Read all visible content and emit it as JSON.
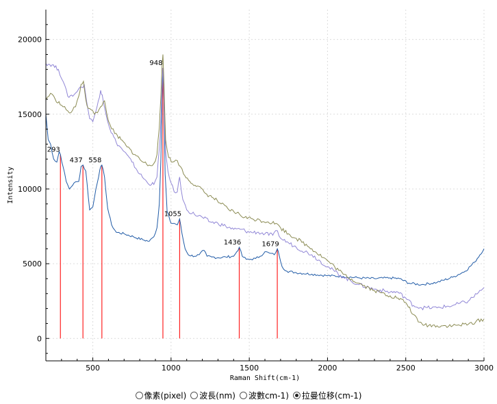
{
  "chart_data": {
    "type": "line",
    "xlabel": "Raman Shift(cm-1)",
    "ylabel": "Intensity",
    "xlim": [
      200,
      3000
    ],
    "ylim": [
      -1500,
      22000
    ],
    "x_ticks": [
      500,
      1000,
      1500,
      2000,
      2500,
      3000
    ],
    "y_ticks": [
      0,
      5000,
      10000,
      15000,
      20000
    ],
    "grid": true,
    "series": [
      {
        "color": "#1f5aa6",
        "points": [
          [
            200,
            15000
          ],
          [
            215,
            13300
          ],
          [
            230,
            13000
          ],
          [
            250,
            12000
          ],
          [
            270,
            11800
          ],
          [
            285,
            12500
          ],
          [
            293,
            12300
          ],
          [
            310,
            11500
          ],
          [
            330,
            10500
          ],
          [
            350,
            10000
          ],
          [
            380,
            10400
          ],
          [
            410,
            10500
          ],
          [
            425,
            11500
          ],
          [
            437,
            11600
          ],
          [
            455,
            11200
          ],
          [
            480,
            8600
          ],
          [
            500,
            8800
          ],
          [
            520,
            10000
          ],
          [
            545,
            11300
          ],
          [
            558,
            11600
          ],
          [
            575,
            10800
          ],
          [
            595,
            8700
          ],
          [
            620,
            7600
          ],
          [
            650,
            7100
          ],
          [
            700,
            7000
          ],
          [
            760,
            6800
          ],
          [
            820,
            6600
          ],
          [
            860,
            6500
          ],
          [
            890,
            6800
          ],
          [
            910,
            7400
          ],
          [
            925,
            9000
          ],
          [
            935,
            12000
          ],
          [
            942,
            16000
          ],
          [
            948,
            18100
          ],
          [
            954,
            16500
          ],
          [
            962,
            11000
          ],
          [
            975,
            8500
          ],
          [
            1000,
            7700
          ],
          [
            1020,
            7700
          ],
          [
            1040,
            7600
          ],
          [
            1055,
            8000
          ],
          [
            1070,
            7000
          ],
          [
            1090,
            6000
          ],
          [
            1110,
            5600
          ],
          [
            1150,
            5500
          ],
          [
            1180,
            5600
          ],
          [
            1210,
            5900
          ],
          [
            1230,
            5500
          ],
          [
            1260,
            5450
          ],
          [
            1300,
            5400
          ],
          [
            1350,
            5450
          ],
          [
            1400,
            5500
          ],
          [
            1420,
            5800
          ],
          [
            1436,
            6100
          ],
          [
            1455,
            5500
          ],
          [
            1480,
            5300
          ],
          [
            1510,
            5300
          ],
          [
            1540,
            5350
          ],
          [
            1570,
            5500
          ],
          [
            1600,
            5800
          ],
          [
            1630,
            5700
          ],
          [
            1660,
            5600
          ],
          [
            1679,
            6000
          ],
          [
            1690,
            5600
          ],
          [
            1710,
            4800
          ],
          [
            1740,
            4500
          ],
          [
            1800,
            4400
          ],
          [
            1900,
            4300
          ],
          [
            2000,
            4200
          ],
          [
            2100,
            4150
          ],
          [
            2200,
            4050
          ],
          [
            2300,
            4000
          ],
          [
            2400,
            4050
          ],
          [
            2460,
            4000
          ],
          [
            2520,
            3700
          ],
          [
            2600,
            3600
          ],
          [
            2700,
            3750
          ],
          [
            2800,
            4100
          ],
          [
            2880,
            4500
          ],
          [
            2940,
            5100
          ],
          [
            3000,
            6000
          ]
        ]
      },
      {
        "color": "#9086d6",
        "points": [
          [
            200,
            18400
          ],
          [
            240,
            18300
          ],
          [
            280,
            18000
          ],
          [
            310,
            17200
          ],
          [
            340,
            16200
          ],
          [
            380,
            16300
          ],
          [
            410,
            16700
          ],
          [
            430,
            16800
          ],
          [
            445,
            17000
          ],
          [
            460,
            15900
          ],
          [
            480,
            14700
          ],
          [
            500,
            14500
          ],
          [
            520,
            15200
          ],
          [
            535,
            15900
          ],
          [
            550,
            16600
          ],
          [
            560,
            16300
          ],
          [
            580,
            15200
          ],
          [
            610,
            14000
          ],
          [
            650,
            13100
          ],
          [
            700,
            12500
          ],
          [
            750,
            11800
          ],
          [
            800,
            11000
          ],
          [
            850,
            10400
          ],
          [
            890,
            10300
          ],
          [
            910,
            10800
          ],
          [
            925,
            12700
          ],
          [
            935,
            14500
          ],
          [
            943,
            17000
          ],
          [
            948,
            18100
          ],
          [
            955,
            15700
          ],
          [
            965,
            12500
          ],
          [
            980,
            11200
          ],
          [
            1000,
            10400
          ],
          [
            1020,
            9800
          ],
          [
            1040,
            9800
          ],
          [
            1055,
            10800
          ],
          [
            1075,
            9300
          ],
          [
            1100,
            8600
          ],
          [
            1150,
            8300
          ],
          [
            1200,
            8100
          ],
          [
            1250,
            7800
          ],
          [
            1300,
            7700
          ],
          [
            1350,
            7500
          ],
          [
            1400,
            7300
          ],
          [
            1450,
            7300
          ],
          [
            1500,
            7100
          ],
          [
            1550,
            7100
          ],
          [
            1600,
            7000
          ],
          [
            1650,
            6900
          ],
          [
            1680,
            7200
          ],
          [
            1700,
            6700
          ],
          [
            1750,
            6400
          ],
          [
            1800,
            6100
          ],
          [
            1900,
            5600
          ],
          [
            2000,
            4800
          ],
          [
            2100,
            4100
          ],
          [
            2200,
            3600
          ],
          [
            2300,
            3300
          ],
          [
            2400,
            3100
          ],
          [
            2450,
            3100
          ],
          [
            2500,
            2700
          ],
          [
            2550,
            2200
          ],
          [
            2600,
            2050
          ],
          [
            2700,
            2050
          ],
          [
            2800,
            2200
          ],
          [
            2900,
            2500
          ],
          [
            3000,
            3400
          ]
        ]
      },
      {
        "color": "#8a8a52",
        "points": [
          [
            200,
            16000
          ],
          [
            230,
            16400
          ],
          [
            260,
            16000
          ],
          [
            300,
            15600
          ],
          [
            330,
            15300
          ],
          [
            360,
            15100
          ],
          [
            390,
            15500
          ],
          [
            410,
            16200
          ],
          [
            425,
            17000
          ],
          [
            440,
            17200
          ],
          [
            455,
            16000
          ],
          [
            470,
            15400
          ],
          [
            490,
            15300
          ],
          [
            510,
            15000
          ],
          [
            530,
            15100
          ],
          [
            550,
            15500
          ],
          [
            575,
            15900
          ],
          [
            590,
            15000
          ],
          [
            610,
            14300
          ],
          [
            640,
            13700
          ],
          [
            680,
            13300
          ],
          [
            720,
            12800
          ],
          [
            770,
            12300
          ],
          [
            820,
            11800
          ],
          [
            860,
            11600
          ],
          [
            890,
            11700
          ],
          [
            910,
            12300
          ],
          [
            925,
            14100
          ],
          [
            935,
            16200
          ],
          [
            943,
            18300
          ],
          [
            948,
            19000
          ],
          [
            955,
            17000
          ],
          [
            965,
            13300
          ],
          [
            985,
            12100
          ],
          [
            1010,
            11800
          ],
          [
            1040,
            11900
          ],
          [
            1060,
            11500
          ],
          [
            1080,
            11000
          ],
          [
            1120,
            10500
          ],
          [
            1170,
            10200
          ],
          [
            1220,
            9700
          ],
          [
            1270,
            9400
          ],
          [
            1320,
            9000
          ],
          [
            1370,
            8600
          ],
          [
            1420,
            8400
          ],
          [
            1470,
            8100
          ],
          [
            1520,
            8000
          ],
          [
            1570,
            7900
          ],
          [
            1620,
            7800
          ],
          [
            1670,
            7700
          ],
          [
            1700,
            7400
          ],
          [
            1750,
            7000
          ],
          [
            1800,
            6700
          ],
          [
            1900,
            6000
          ],
          [
            2000,
            5200
          ],
          [
            2100,
            4300
          ],
          [
            2200,
            3700
          ],
          [
            2300,
            3200
          ],
          [
            2400,
            2850
          ],
          [
            2450,
            2700
          ],
          [
            2500,
            2400
          ],
          [
            2550,
            1600
          ],
          [
            2580,
            1100
          ],
          [
            2620,
            900
          ],
          [
            2700,
            850
          ],
          [
            2800,
            850
          ],
          [
            2900,
            950
          ],
          [
            3000,
            1300
          ]
        ]
      }
    ],
    "peaks": [
      {
        "x": 293,
        "y": 12300,
        "label": "293"
      },
      {
        "x": 437,
        "y": 11600,
        "label": "437"
      },
      {
        "x": 558,
        "y": 11600,
        "label": "558"
      },
      {
        "x": 948,
        "y": 18100,
        "label": "948"
      },
      {
        "x": 1055,
        "y": 8000,
        "label": "1055"
      },
      {
        "x": 1436,
        "y": 6100,
        "label": "1436"
      },
      {
        "x": 1679,
        "y": 6000,
        "label": "1679"
      }
    ],
    "peak_line_color": "#ff2020"
  },
  "unit_selector": {
    "options": [
      {
        "label": "像素(pixel)",
        "checked": false
      },
      {
        "label": "波長(nm)",
        "checked": false
      },
      {
        "label": "波數cm-1)",
        "checked": false
      },
      {
        "label": "拉曼位移(cm-1)",
        "checked": true
      }
    ]
  }
}
